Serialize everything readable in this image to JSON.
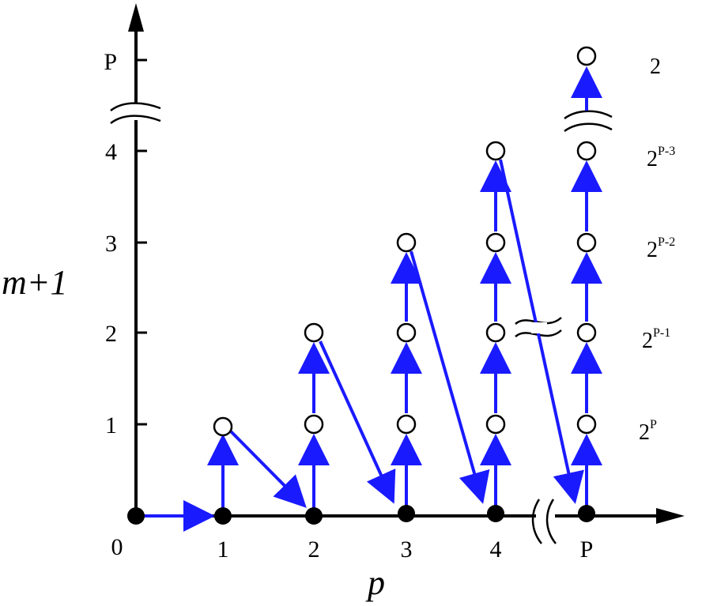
{
  "axes": {
    "x_title": "p",
    "y_title": "m+1",
    "origin_label": "0",
    "x_ticks": [
      {
        "label": "1",
        "p": 1
      },
      {
        "label": "2",
        "p": 2
      },
      {
        "label": "3",
        "p": 3
      },
      {
        "label": "4",
        "p": 4
      },
      {
        "label": "P",
        "p": "P"
      }
    ],
    "y_ticks": [
      {
        "label": "1",
        "m1": 1
      },
      {
        "label": "2",
        "m1": 2
      },
      {
        "label": "3",
        "m1": 3
      },
      {
        "label": "4",
        "m1": 4
      },
      {
        "label": "P",
        "m1": "P"
      }
    ]
  },
  "columns": [
    {
      "p": "1",
      "open_levels": [
        "1"
      ]
    },
    {
      "p": "2",
      "open_levels": [
        "1",
        "2"
      ]
    },
    {
      "p": "3",
      "open_levels": [
        "1",
        "2",
        "3"
      ]
    },
    {
      "p": "4",
      "open_levels": [
        "1",
        "2",
        "3",
        "4"
      ]
    },
    {
      "p": "P",
      "open_levels": [
        "1",
        "2",
        "3",
        "4",
        "P"
      ]
    }
  ],
  "right_labels": [
    {
      "base": "2",
      "exp": "",
      "level": "P"
    },
    {
      "base": "2",
      "exp": "P-3",
      "level": "4"
    },
    {
      "base": "2",
      "exp": "P-2",
      "level": "3"
    },
    {
      "base": "2",
      "exp": "P-1",
      "level": "2"
    },
    {
      "base": "2",
      "exp": "P",
      "level": "1"
    }
  ],
  "colors": {
    "arrow": "#1a1aff",
    "axis": "#000000",
    "filled_node": "#000000",
    "open_node_fill": "#ffffff"
  }
}
